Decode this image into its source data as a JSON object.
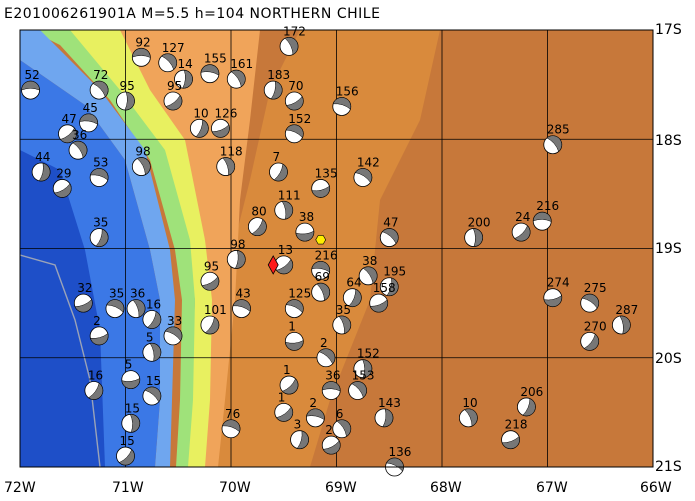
{
  "title": "E201006261901A  M=5.5  h=104  NORTHERN CHILE",
  "axes": {
    "lat_labels": [
      "17S",
      "18S",
      "19S",
      "20S",
      "21S"
    ],
    "lon_labels": [
      "72W",
      "71W",
      "70W",
      "69W",
      "68W",
      "67W",
      "66W"
    ],
    "lon_range": [
      -72,
      -66
    ],
    "lat_range": [
      -21,
      -17
    ],
    "grid": true
  },
  "colors": {
    "deep_ocean": "#1e4fc8",
    "ocean": "#3b78e6",
    "shelf": "#6fa6ef",
    "coast_green": "#9fe27a",
    "coast_yellow": "#e8f060",
    "slope_orange": "#f0a45a",
    "highland": "#d98a3c",
    "altiplano": "#c7783a",
    "epicenter": "#ff1a1a",
    "station": "#ffee00",
    "beachball_fill": "#777777"
  },
  "event": {
    "lon": -69.6,
    "lat": -19.15,
    "depth": 104,
    "magnitude": 5.5
  },
  "station": {
    "lon": -69.15,
    "lat": -18.92
  },
  "mechanisms": [
    {
      "lon": -71.9,
      "lat": -17.55,
      "label": "52"
    },
    {
      "lon": -71.25,
      "lat": -17.55,
      "label": "72"
    },
    {
      "lon": -71.0,
      "lat": -17.65,
      "label": "95"
    },
    {
      "lon": -71.55,
      "lat": -17.95,
      "label": "47"
    },
    {
      "lon": -71.35,
      "lat": -17.85,
      "label": "45"
    },
    {
      "lon": -71.45,
      "lat": -18.1,
      "label": "36"
    },
    {
      "lon": -71.8,
      "lat": -18.3,
      "label": "44"
    },
    {
      "lon": -71.6,
      "lat": -18.45,
      "label": "29"
    },
    {
      "lon": -71.25,
      "lat": -18.35,
      "label": "53"
    },
    {
      "lon": -70.85,
      "lat": -18.25,
      "label": "98"
    },
    {
      "lon": -71.25,
      "lat": -18.9,
      "label": "35"
    },
    {
      "lon": -71.4,
      "lat": -19.5,
      "label": "32"
    },
    {
      "lon": -71.1,
      "lat": -19.55,
      "label": "35"
    },
    {
      "lon": -70.9,
      "lat": -19.55,
      "label": "36"
    },
    {
      "lon": -70.75,
      "lat": -19.65,
      "label": "16"
    },
    {
      "lon": -71.25,
      "lat": -19.8,
      "label": "2"
    },
    {
      "lon": -70.55,
      "lat": -19.8,
      "label": "33"
    },
    {
      "lon": -70.75,
      "lat": -19.95,
      "label": "5"
    },
    {
      "lon": -71.3,
      "lat": -20.3,
      "label": "16"
    },
    {
      "lon": -70.95,
      "lat": -20.2,
      "label": "5"
    },
    {
      "lon": -70.75,
      "lat": -20.35,
      "label": "15"
    },
    {
      "lon": -70.95,
      "lat": -20.6,
      "label": "15"
    },
    {
      "lon": -71.0,
      "lat": -20.9,
      "label": "15"
    },
    {
      "lon": -70.85,
      "lat": -17.25,
      "label": "92"
    },
    {
      "lon": -70.6,
      "lat": -17.3,
      "label": "127"
    },
    {
      "lon": -70.45,
      "lat": -17.45,
      "label": "14"
    },
    {
      "lon": -70.55,
      "lat": -17.65,
      "label": "95"
    },
    {
      "lon": -70.2,
      "lat": -17.4,
      "label": "155"
    },
    {
      "lon": -69.95,
      "lat": -17.45,
      "label": "161"
    },
    {
      "lon": -69.6,
      "lat": -17.55,
      "label": "183"
    },
    {
      "lon": -69.4,
      "lat": -17.65,
      "label": "70"
    },
    {
      "lon": -68.95,
      "lat": -17.7,
      "label": "156"
    },
    {
      "lon": -69.45,
      "lat": -17.15,
      "label": "172"
    },
    {
      "lon": -70.3,
      "lat": -17.9,
      "label": "10"
    },
    {
      "lon": -70.1,
      "lat": -17.9,
      "label": "126"
    },
    {
      "lon": -69.4,
      "lat": -17.95,
      "label": "152"
    },
    {
      "lon": -70.05,
      "lat": -18.25,
      "label": "118"
    },
    {
      "lon": -69.55,
      "lat": -18.3,
      "label": "7"
    },
    {
      "lon": -69.15,
      "lat": -18.45,
      "label": "135"
    },
    {
      "lon": -68.75,
      "lat": -18.35,
      "label": "142"
    },
    {
      "lon": -69.5,
      "lat": -18.65,
      "label": "111"
    },
    {
      "lon": -69.75,
      "lat": -18.8,
      "label": "80"
    },
    {
      "lon": -69.3,
      "lat": -18.85,
      "label": "38"
    },
    {
      "lon": -68.5,
      "lat": -18.9,
      "label": "47"
    },
    {
      "lon": -67.7,
      "lat": -18.9,
      "label": "200"
    },
    {
      "lon": -67.25,
      "lat": -18.85,
      "label": "24"
    },
    {
      "lon": -67.05,
      "lat": -18.75,
      "label": "216"
    },
    {
      "lon": -66.95,
      "lat": -18.05,
      "label": "285"
    },
    {
      "lon": -69.95,
      "lat": -19.1,
      "label": "98"
    },
    {
      "lon": -69.5,
      "lat": -19.15,
      "label": "13"
    },
    {
      "lon": -69.15,
      "lat": -19.2,
      "label": "216"
    },
    {
      "lon": -68.7,
      "lat": -19.25,
      "label": "38"
    },
    {
      "lon": -68.5,
      "lat": -19.35,
      "label": "195"
    },
    {
      "lon": -70.2,
      "lat": -19.3,
      "label": "95"
    },
    {
      "lon": -69.9,
      "lat": -19.55,
      "label": "43"
    },
    {
      "lon": -69.15,
      "lat": -19.4,
      "label": "69"
    },
    {
      "lon": -68.85,
      "lat": -19.45,
      "label": "64"
    },
    {
      "lon": -68.6,
      "lat": -19.5,
      "label": "158"
    },
    {
      "lon": -69.4,
      "lat": -19.55,
      "label": "125"
    },
    {
      "lon": -68.95,
      "lat": -19.7,
      "label": "35"
    },
    {
      "lon": -70.2,
      "lat": -19.7,
      "label": "101"
    },
    {
      "lon": -66.95,
      "lat": -19.45,
      "label": "274"
    },
    {
      "lon": -66.6,
      "lat": -19.5,
      "label": "275"
    },
    {
      "lon": -66.3,
      "lat": -19.7,
      "label": "287"
    },
    {
      "lon": -66.6,
      "lat": -19.85,
      "label": "270"
    },
    {
      "lon": -69.4,
      "lat": -19.85,
      "label": "1"
    },
    {
      "lon": -69.1,
      "lat": -20.0,
      "label": "2"
    },
    {
      "lon": -68.75,
      "lat": -20.1,
      "label": "152"
    },
    {
      "lon": -69.45,
      "lat": -20.25,
      "label": "1"
    },
    {
      "lon": -69.05,
      "lat": -20.3,
      "label": "36"
    },
    {
      "lon": -68.8,
      "lat": -20.3,
      "label": "153"
    },
    {
      "lon": -68.55,
      "lat": -20.55,
      "label": "143"
    },
    {
      "lon": -69.5,
      "lat": -20.5,
      "label": "1"
    },
    {
      "lon": -69.2,
      "lat": -20.55,
      "label": "2"
    },
    {
      "lon": -68.95,
      "lat": -20.65,
      "label": "6"
    },
    {
      "lon": -69.35,
      "lat": -20.75,
      "label": "3"
    },
    {
      "lon": -69.05,
      "lat": -20.8,
      "label": "2"
    },
    {
      "lon": -70.0,
      "lat": -20.65,
      "label": "76"
    },
    {
      "lon": -67.75,
      "lat": -20.55,
      "label": "10"
    },
    {
      "lon": -67.2,
      "lat": -20.45,
      "label": "206"
    },
    {
      "lon": -67.35,
      "lat": -20.75,
      "label": "218"
    },
    {
      "lon": -68.45,
      "lat": -21.0,
      "label": "136"
    }
  ]
}
